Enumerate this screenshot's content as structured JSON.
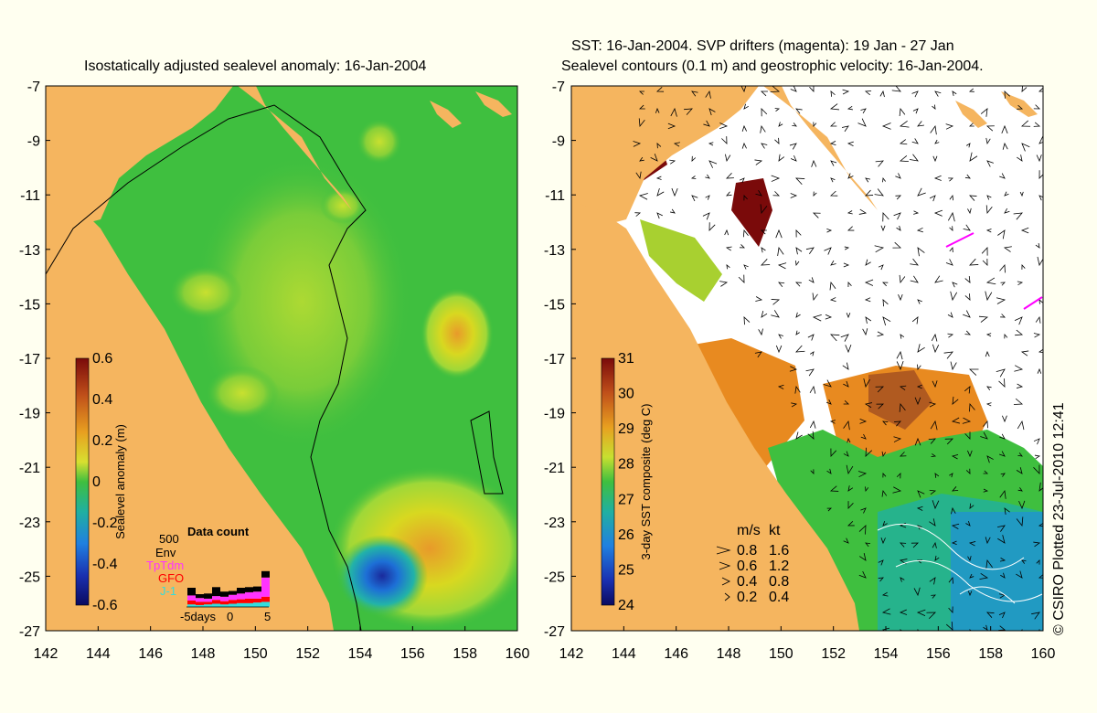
{
  "left_panel": {
    "title": "Isostatically adjusted sealevel anomaly: 16-Jan-2004",
    "colorbar": {
      "label": "Sealevel anomaly (m)",
      "ticks": [
        "0.6",
        "0.4",
        "0.2",
        "0",
        "-0.2",
        "-0.4",
        "-0.6"
      ]
    },
    "data_count": {
      "title": "Data count",
      "ymax_label": "500",
      "legend": [
        {
          "name": "Env",
          "color": "#000000"
        },
        {
          "name": "TpTdm",
          "color": "#ff33ff"
        },
        {
          "name": "GFO",
          "color": "#ff0000"
        },
        {
          "name": "J-1",
          "color": "#33dddd"
        }
      ],
      "x_labels": [
        "-5days",
        "0",
        "5"
      ],
      "bars": [
        {
          "env": 60,
          "tp": 40,
          "gfo": 30,
          "j1": 20
        },
        {
          "env": 30,
          "tp": 30,
          "gfo": 25,
          "j1": 15
        },
        {
          "env": 40,
          "tp": 25,
          "gfo": 20,
          "j1": 20
        },
        {
          "env": 70,
          "tp": 30,
          "gfo": 30,
          "j1": 25
        },
        {
          "env": 40,
          "tp": 35,
          "gfo": 25,
          "j1": 20
        },
        {
          "env": 30,
          "tp": 40,
          "gfo": 30,
          "j1": 25
        },
        {
          "env": 45,
          "tp": 45,
          "gfo": 30,
          "j1": 30
        },
        {
          "env": 40,
          "tp": 50,
          "gfo": 35,
          "j1": 30
        },
        {
          "env": 40,
          "tp": 55,
          "gfo": 30,
          "j1": 35
        },
        {
          "env": 50,
          "tp": 150,
          "gfo": 40,
          "j1": 40
        }
      ]
    }
  },
  "right_panel": {
    "title_line1": "SST: 16-Jan-2004. SVP drifters (magenta): 19 Jan - 27 Jan",
    "title_line2": "Sealevel contours (0.1 m) and geostrophic velocity: 16-Jan-2004.",
    "colorbar": {
      "label": "3-day SST composite (deg C)",
      "ticks": [
        "31",
        "30",
        "29",
        "28",
        "27",
        "26",
        "25",
        "24"
      ]
    },
    "velocity_legend": {
      "header_ms": "m/s",
      "header_kt": "kt",
      "rows": [
        {
          "ms": "0.8",
          "kt": "1.6"
        },
        {
          "ms": "0.6",
          "kt": "1.2"
        },
        {
          "ms": "0.4",
          "kt": "0.8"
        },
        {
          "ms": "0.2",
          "kt": "0.4"
        }
      ]
    },
    "copyright": "© CSIRO Plotted 23-Jul-2010 12:41"
  },
  "axes": {
    "y_ticks": [
      "-7",
      "-9",
      "-11",
      "-13",
      "-15",
      "-17",
      "-19",
      "-21",
      "-23",
      "-25",
      "-27"
    ],
    "x_ticks": [
      "142",
      "144",
      "146",
      "148",
      "150",
      "152",
      "154",
      "156",
      "158",
      "160"
    ]
  },
  "colors": {
    "land": "#f5b55f",
    "background": "#fffff0",
    "ssh_base": "#3fbf3f",
    "sst_cloud": "#ffffff",
    "drifter": "#ff00ff"
  }
}
